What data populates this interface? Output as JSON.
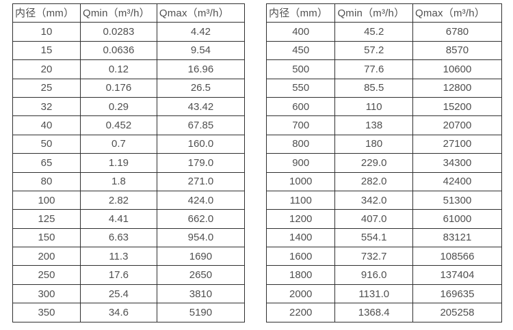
{
  "page": {
    "background": "#ffffff",
    "border_color": "#2e2e2e",
    "text_color": "#4f4f4f"
  },
  "tables": [
    {
      "name": "flow-range-table-dn10-350",
      "headers": [
        "内径（mm）",
        "Qmin（m³/h）",
        "Qmax（m³/h）"
      ],
      "rows": [
        [
          "10",
          "0.0283",
          "4.42"
        ],
        [
          "15",
          "0.0636",
          "9.54"
        ],
        [
          "20",
          "0.12",
          "16.96"
        ],
        [
          "25",
          "0.176",
          "26.5"
        ],
        [
          "32",
          "0.29",
          "43.42"
        ],
        [
          "40",
          "0.452",
          "67.85"
        ],
        [
          "50",
          "0.7",
          "160.0"
        ],
        [
          "65",
          "1.19",
          "179.0"
        ],
        [
          "80",
          "1.8",
          "271.0"
        ],
        [
          "100",
          "2.82",
          "424.0"
        ],
        [
          "125",
          "4.41",
          "662.0"
        ],
        [
          "150",
          "6.63",
          "954.0"
        ],
        [
          "200",
          "11.3",
          "1690"
        ],
        [
          "250",
          "17.6",
          "2650"
        ],
        [
          "300",
          "25.4",
          "3810"
        ],
        [
          "350",
          "34.6",
          "5190"
        ]
      ]
    },
    {
      "name": "flow-range-table-dn400-2200",
      "headers": [
        "内径（mm）",
        "Qmin（m³/h）",
        "Qmax（m³/h）"
      ],
      "rows": [
        [
          "400",
          "45.2",
          "6780"
        ],
        [
          "450",
          "57.2",
          "8570"
        ],
        [
          "500",
          "77.6",
          "10600"
        ],
        [
          "550",
          "85.5",
          "12800"
        ],
        [
          "600",
          "110",
          "15200"
        ],
        [
          "700",
          "138",
          "20700"
        ],
        [
          "800",
          "180",
          "27100"
        ],
        [
          "900",
          "229.0",
          "34300"
        ],
        [
          "1000",
          "282.0",
          "42400"
        ],
        [
          "1100",
          "342.0",
          "51300"
        ],
        [
          "1200",
          "407.0",
          "61000"
        ],
        [
          "1400",
          "554.1",
          "83121"
        ],
        [
          "1600",
          "732.7",
          "108566"
        ],
        [
          "1800",
          "916.0",
          "137404"
        ],
        [
          "2000",
          "1131.0",
          "169635"
        ],
        [
          "2200",
          "1368.4",
          "205258"
        ]
      ]
    }
  ]
}
